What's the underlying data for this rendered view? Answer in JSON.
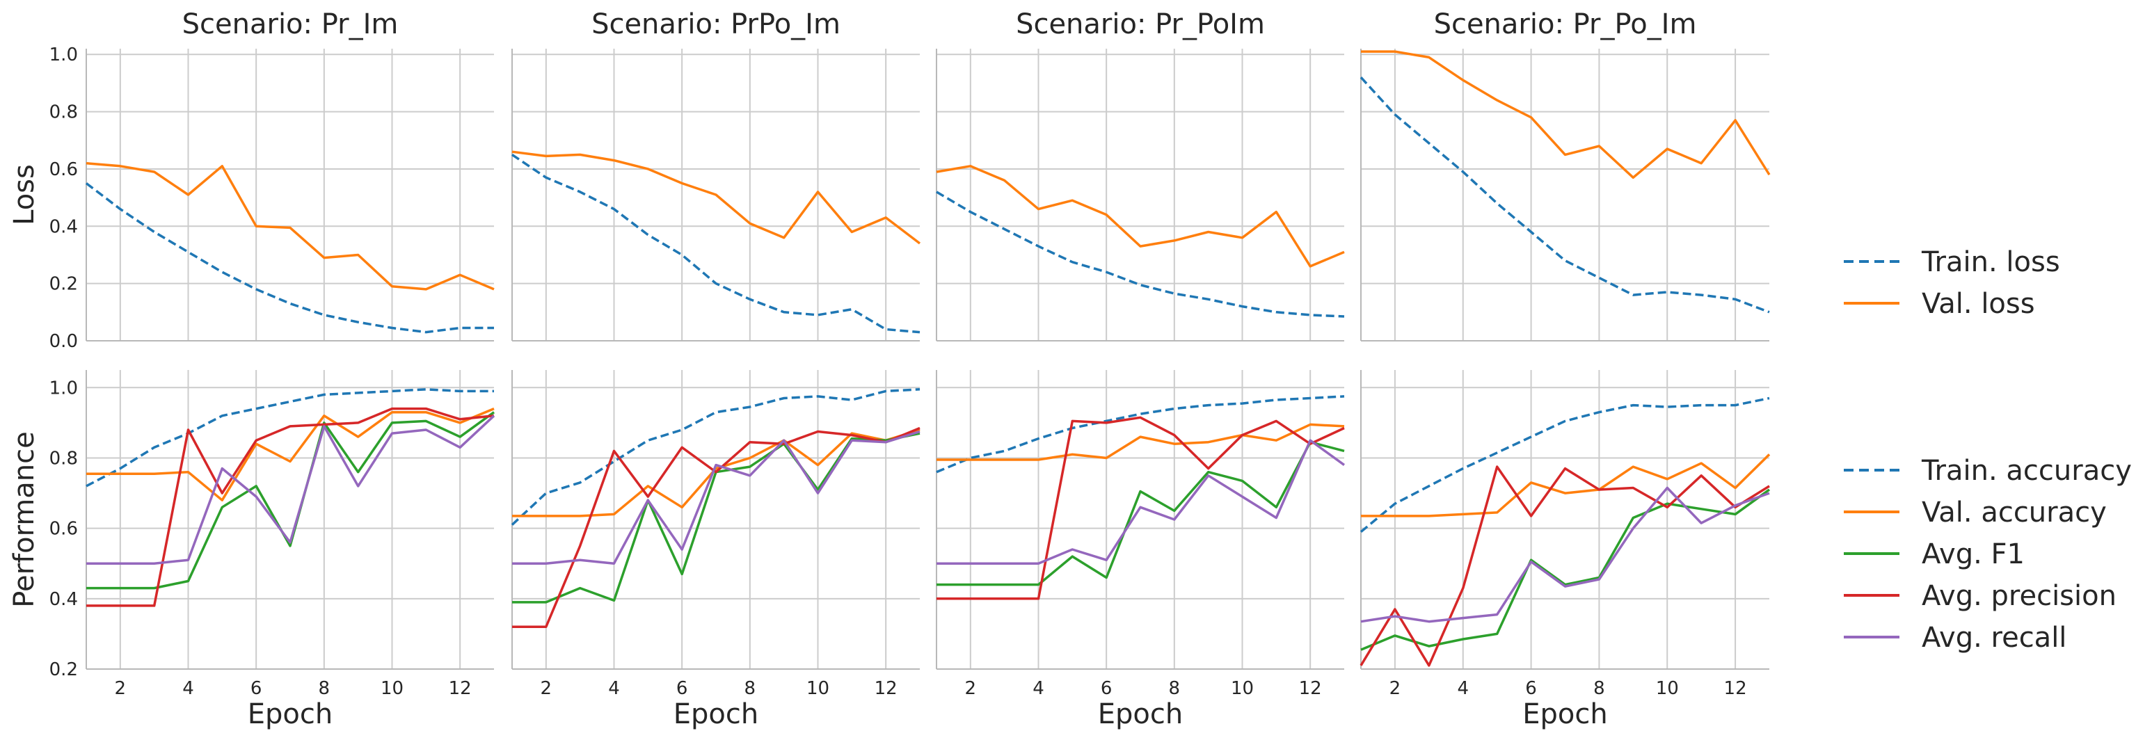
{
  "chart_data": {
    "type": "line",
    "xlabel": "Epoch",
    "x": [
      1,
      2,
      3,
      4,
      5,
      6,
      7,
      8,
      9,
      10,
      11,
      12,
      13
    ],
    "xlim": [
      1,
      13
    ],
    "xticks": [
      "2",
      "4",
      "6",
      "8",
      "10",
      "12"
    ],
    "grid": true,
    "rows": [
      {
        "ylabel": "Loss",
        "ylim": [
          0,
          1.02
        ],
        "yticks": [
          "0.0",
          "0.2",
          "0.4",
          "0.6",
          "0.8",
          "1.0"
        ],
        "legend": [
          {
            "name": "Train. loss",
            "color": "#1f77b4",
            "style": "dashed"
          },
          {
            "name": "Val. loss",
            "color": "#ff7f0e",
            "style": "solid"
          }
        ]
      },
      {
        "ylabel": "Performance",
        "ylim": [
          0.2,
          1.05
        ],
        "yticks": [
          "0.2",
          "0.4",
          "0.6",
          "0.8",
          "1.0"
        ],
        "legend": [
          {
            "name": "Train. accuracy",
            "color": "#1f77b4",
            "style": "dashed"
          },
          {
            "name": "Val. accuracy",
            "color": "#ff7f0e",
            "style": "solid"
          },
          {
            "name": "Avg. F1",
            "color": "#2ca02c",
            "style": "solid"
          },
          {
            "name": "Avg. precision",
            "color": "#d62728",
            "style": "solid"
          },
          {
            "name": "Avg. recall",
            "color": "#9467bd",
            "style": "solid"
          }
        ]
      }
    ],
    "panels": [
      {
        "title": "Scenario: Pr_Im",
        "loss": {
          "Train. loss": [
            0.55,
            0.46,
            0.38,
            0.31,
            0.24,
            0.18,
            0.13,
            0.09,
            0.065,
            0.045,
            0.03,
            0.045,
            0.045
          ],
          "Val. loss": [
            0.62,
            0.61,
            0.59,
            0.51,
            0.61,
            0.4,
            0.395,
            0.29,
            0.3,
            0.19,
            0.18,
            0.23,
            0.18
          ]
        },
        "performance": {
          "Train. accuracy": [
            0.72,
            0.77,
            0.83,
            0.87,
            0.92,
            0.94,
            0.96,
            0.98,
            0.985,
            0.99,
            0.995,
            0.99,
            0.99
          ],
          "Val. accuracy": [
            0.755,
            0.755,
            0.755,
            0.76,
            0.68,
            0.84,
            0.79,
            0.92,
            0.86,
            0.93,
            0.93,
            0.9,
            0.94
          ],
          "Avg. F1": [
            0.43,
            0.43,
            0.43,
            0.45,
            0.66,
            0.72,
            0.55,
            0.9,
            0.76,
            0.9,
            0.905,
            0.86,
            0.93
          ],
          "Avg. precision": [
            0.38,
            0.38,
            0.38,
            0.88,
            0.7,
            0.85,
            0.89,
            0.895,
            0.9,
            0.94,
            0.94,
            0.91,
            0.92
          ],
          "Avg. recall": [
            0.5,
            0.5,
            0.5,
            0.51,
            0.77,
            0.69,
            0.56,
            0.89,
            0.72,
            0.87,
            0.88,
            0.83,
            0.92
          ]
        }
      },
      {
        "title": "Scenario: PrPo_Im",
        "loss": {
          "Train. loss": [
            0.65,
            0.57,
            0.52,
            0.46,
            0.37,
            0.3,
            0.2,
            0.145,
            0.1,
            0.09,
            0.11,
            0.04,
            0.03
          ],
          "Val. loss": [
            0.66,
            0.645,
            0.65,
            0.63,
            0.6,
            0.55,
            0.51,
            0.41,
            0.36,
            0.52,
            0.38,
            0.43,
            0.34
          ]
        },
        "performance": {
          "Train. accuracy": [
            0.61,
            0.7,
            0.73,
            0.79,
            0.85,
            0.88,
            0.93,
            0.945,
            0.97,
            0.975,
            0.965,
            0.99,
            0.995
          ],
          "Val. accuracy": [
            0.635,
            0.635,
            0.635,
            0.64,
            0.72,
            0.66,
            0.77,
            0.8,
            0.85,
            0.78,
            0.87,
            0.85,
            0.88
          ],
          "Avg. F1": [
            0.39,
            0.39,
            0.43,
            0.395,
            0.68,
            0.47,
            0.76,
            0.775,
            0.84,
            0.71,
            0.855,
            0.85,
            0.87
          ],
          "Avg. precision": [
            0.32,
            0.32,
            0.55,
            0.82,
            0.69,
            0.83,
            0.76,
            0.845,
            0.84,
            0.875,
            0.865,
            0.845,
            0.885
          ],
          "Avg. recall": [
            0.5,
            0.5,
            0.51,
            0.5,
            0.68,
            0.54,
            0.78,
            0.75,
            0.85,
            0.7,
            0.85,
            0.845,
            0.875
          ]
        }
      },
      {
        "title": "Scenario: Pr_PoIm",
        "loss": {
          "Train. loss": [
            0.52,
            0.45,
            0.39,
            0.33,
            0.275,
            0.24,
            0.195,
            0.165,
            0.145,
            0.12,
            0.1,
            0.09,
            0.085
          ],
          "Val. loss": [
            0.59,
            0.61,
            0.56,
            0.46,
            0.49,
            0.44,
            0.33,
            0.35,
            0.38,
            0.36,
            0.45,
            0.26,
            0.31
          ]
        },
        "performance": {
          "Train. accuracy": [
            0.76,
            0.8,
            0.82,
            0.855,
            0.885,
            0.905,
            0.925,
            0.94,
            0.95,
            0.955,
            0.965,
            0.97,
            0.975
          ],
          "Val. accuracy": [
            0.795,
            0.795,
            0.795,
            0.795,
            0.81,
            0.8,
            0.86,
            0.84,
            0.845,
            0.865,
            0.85,
            0.895,
            0.89
          ],
          "Avg. F1": [
            0.44,
            0.44,
            0.44,
            0.44,
            0.52,
            0.46,
            0.705,
            0.65,
            0.76,
            0.735,
            0.66,
            0.845,
            0.82
          ],
          "Avg. precision": [
            0.4,
            0.4,
            0.4,
            0.4,
            0.905,
            0.9,
            0.915,
            0.865,
            0.77,
            0.865,
            0.905,
            0.84,
            0.885
          ],
          "Avg. recall": [
            0.5,
            0.5,
            0.5,
            0.5,
            0.54,
            0.51,
            0.66,
            0.625,
            0.75,
            0.69,
            0.63,
            0.85,
            0.78
          ]
        }
      },
      {
        "title": "Scenario: Pr_Po_Im",
        "loss": {
          "Train. loss": [
            0.92,
            0.79,
            0.69,
            0.59,
            0.48,
            0.38,
            0.28,
            0.22,
            0.16,
            0.17,
            0.16,
            0.145,
            0.1
          ],
          "Val. loss": [
            1.01,
            1.01,
            0.99,
            0.91,
            0.84,
            0.78,
            0.65,
            0.68,
            0.57,
            0.67,
            0.62,
            0.77,
            0.58
          ]
        },
        "performance": {
          "Train. accuracy": [
            0.59,
            0.67,
            0.72,
            0.77,
            0.815,
            0.86,
            0.905,
            0.93,
            0.95,
            0.945,
            0.95,
            0.95,
            0.97
          ],
          "Val. accuracy": [
            0.635,
            0.635,
            0.635,
            0.64,
            0.645,
            0.73,
            0.7,
            0.71,
            0.775,
            0.74,
            0.785,
            0.715,
            0.81
          ],
          "Avg. F1": [
            0.255,
            0.295,
            0.265,
            0.285,
            0.3,
            0.51,
            0.44,
            0.46,
            0.63,
            0.67,
            0.655,
            0.64,
            0.71
          ],
          "Avg. precision": [
            0.21,
            0.37,
            0.21,
            0.43,
            0.775,
            0.635,
            0.77,
            0.71,
            0.715,
            0.66,
            0.75,
            0.66,
            0.72
          ],
          "Avg. recall": [
            0.335,
            0.35,
            0.335,
            0.345,
            0.355,
            0.505,
            0.435,
            0.455,
            0.6,
            0.715,
            0.615,
            0.665,
            0.7
          ]
        }
      }
    ]
  }
}
